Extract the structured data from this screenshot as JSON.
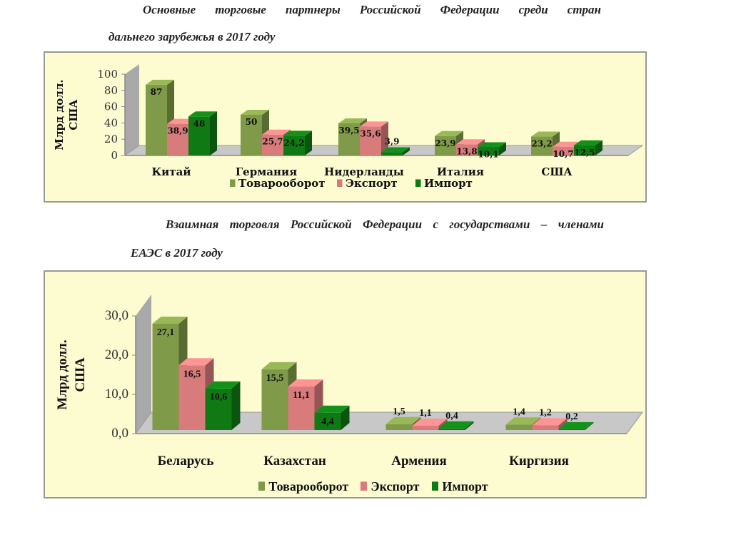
{
  "titles": {
    "chart1_line1": "Основные торговые партнеры Российской Федерации среди стран",
    "chart1_line2": "дальнего зарубежья в 2017 году",
    "chart2_line1": "Взаимная торговля Российской Федерации с государствами – членами",
    "chart2_line2": "ЕАЭС в 2017 году"
  },
  "colors": {
    "turnover": "#7f9a48",
    "export": "#d77b7b",
    "import": "#0f7a14",
    "panel": "#fdfbd0",
    "floor": "#c8c8c8"
  },
  "chart_data": [
    {
      "type": "bar",
      "title": "Основные торговые партнеры Российской Федерации среди стран дальнего зарубежья в 2017 году",
      "ylabel": "Млрд долл. США",
      "ylim": [
        0,
        100
      ],
      "yticks": [
        "0",
        "20",
        "40",
        "60",
        "80",
        "100"
      ],
      "categories": [
        "Китай",
        "Германия",
        "Нидерланды",
        "Италия",
        "США"
      ],
      "legend_position": "bottom",
      "series": [
        {
          "name": "Товарооборот",
          "values": [
            87,
            50,
            39.5,
            23.9,
            23.2
          ],
          "labels": [
            "87",
            "50",
            "39,5",
            "23,9",
            "23,2"
          ]
        },
        {
          "name": "Экспорт",
          "values": [
            38.9,
            25.7,
            35.6,
            13.8,
            10.7
          ],
          "labels": [
            "38,9",
            "25,7",
            "35,6",
            "13,8",
            "10,7"
          ]
        },
        {
          "name": "Импорт",
          "values": [
            48,
            24.2,
            3.9,
            10.1,
            12.5
          ],
          "labels": [
            "48",
            "24,2",
            "3,9",
            "10,1",
            "12,5"
          ]
        }
      ]
    },
    {
      "type": "bar",
      "title": "Взаимная торговля Российской Федерации с государствами – членами ЕАЭС в 2017 году",
      "ylabel": "Млрд долл. США",
      "ylim": [
        0,
        30
      ],
      "yticks": [
        "0,0",
        "10,0",
        "20,0",
        "30,0"
      ],
      "categories": [
        "Беларусь",
        "Казахстан",
        "Армения",
        "Киргизия"
      ],
      "legend_position": "bottom",
      "series": [
        {
          "name": "Товарооборот",
          "values": [
            27.1,
            15.5,
            1.5,
            1.4
          ],
          "labels": [
            "27,1",
            "15,5",
            "1,5",
            "1,4"
          ]
        },
        {
          "name": "Экспорт",
          "values": [
            16.5,
            11.1,
            1.1,
            1.2
          ],
          "labels": [
            "16,5",
            "11,1",
            "1,1",
            "1,2"
          ]
        },
        {
          "name": "Импорт",
          "values": [
            10.6,
            4.4,
            0.4,
            0.2
          ],
          "labels": [
            "10,6",
            "4,4",
            "0,4",
            "0,2"
          ]
        }
      ]
    }
  ]
}
